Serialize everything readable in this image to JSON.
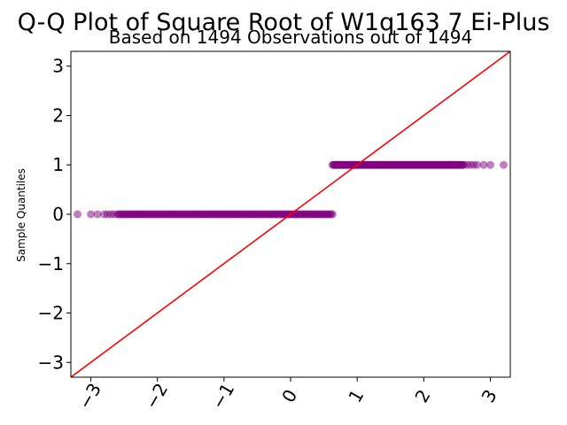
{
  "chart_data": {
    "type": "scatter",
    "title": "Q-Q Plot of Square Root of W1q163 7 Ei-Plus",
    "subtitle": "Based on 1494 Observations out of 1494",
    "xlabel": "",
    "ylabel": "Sample Quantiles",
    "xlim": [
      -3.3,
      3.3
    ],
    "ylim": [
      -3.3,
      3.3
    ],
    "x_ticks": [
      -3,
      -2,
      -1,
      0,
      1,
      2,
      3
    ],
    "y_ticks": [
      -3,
      -2,
      -1,
      0,
      1,
      2,
      3
    ],
    "x_tick_labels": [
      "−3",
      "−2",
      "−1",
      "0",
      "1",
      "2",
      "3"
    ],
    "y_tick_labels": [
      "−3",
      "−2",
      "−1",
      "0",
      "1",
      "2",
      "3"
    ],
    "grid": false,
    "series": [
      {
        "marker_color": "#800080",
        "point_groups": [
          {
            "y": 0,
            "x_dense_range": [
              -2.6,
              0.63
            ],
            "x_sparse": [
              -3.2,
              -3.0,
              -2.9,
              -2.8,
              -2.75,
              -2.7,
              -2.65
            ]
          },
          {
            "y": 1,
            "x_dense_range": [
              0.63,
              2.6
            ],
            "x_sparse": [
              2.65,
              2.7,
              2.75,
              2.8,
              2.9,
              3.0,
              3.2
            ]
          }
        ]
      }
    ],
    "reference_line": {
      "from": [
        -3.3,
        -3.3
      ],
      "to": [
        3.3,
        3.3
      ],
      "color": "#ff0000"
    }
  }
}
